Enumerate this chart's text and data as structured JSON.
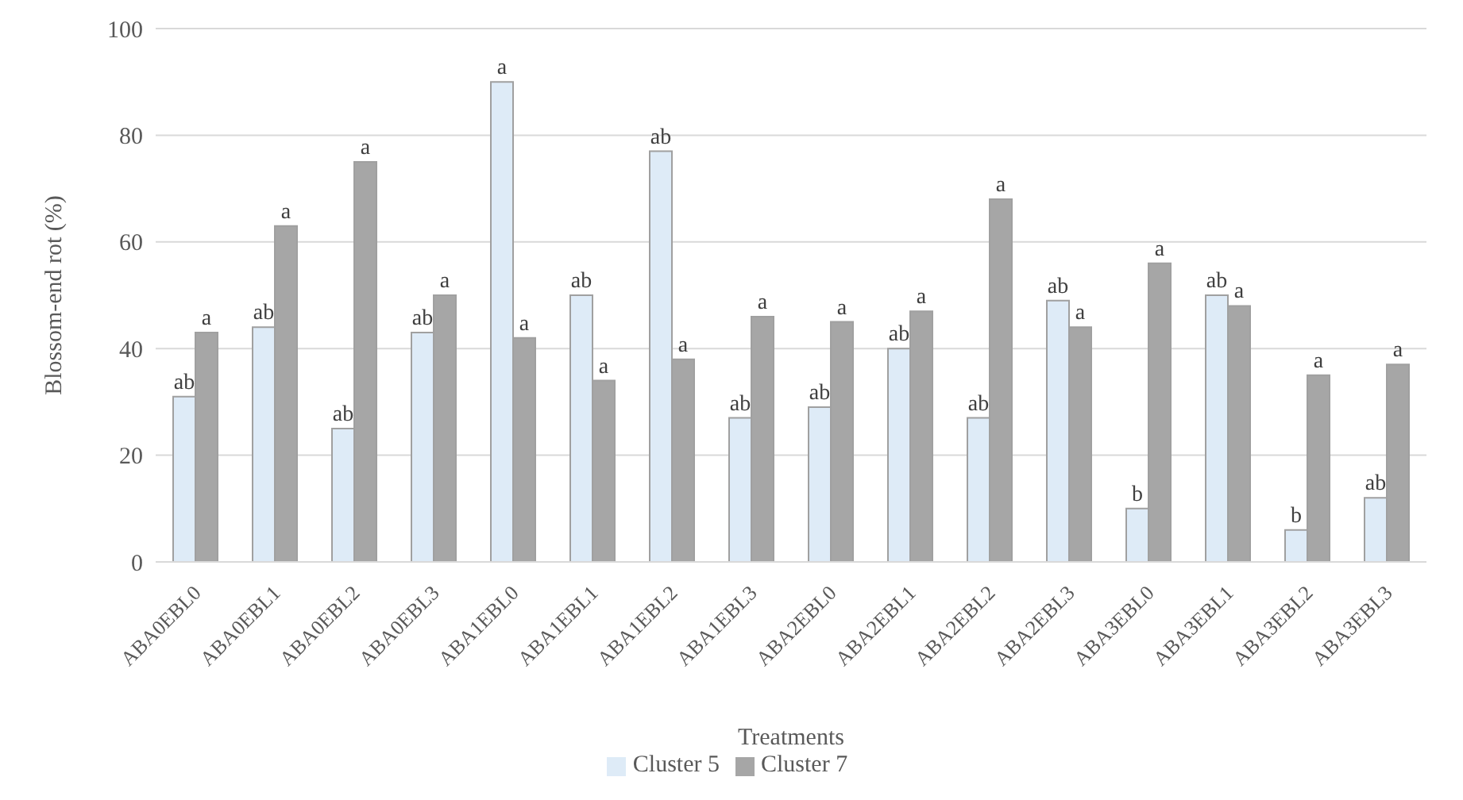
{
  "chart_data": {
    "type": "bar",
    "xlabel": "Treatments",
    "ylabel": "Blossom-end rot (%)",
    "categories": [
      "ABA0EBL0",
      "ABA0EBL1",
      "ABA0EBL2",
      "ABA0EBL3",
      "ABA1EBL0",
      "ABA1EBL1",
      "ABA1EBL2",
      "ABA1EBL3",
      "ABA2EBL0",
      "ABA2EBL1",
      "ABA2EBL2",
      "ABA2EBL3",
      "ABA3EBL0",
      "ABA3EBL1",
      "ABA3EBL2",
      "ABA3EBL3"
    ],
    "series": [
      {
        "name": "Cluster 5",
        "color": "#deebf7",
        "values": [
          31,
          44,
          25,
          43,
          90,
          50,
          77,
          27,
          29,
          40,
          27,
          49,
          10,
          50,
          6,
          12
        ],
        "value_labels": [
          "ab",
          "ab",
          "ab",
          "ab",
          "a",
          "ab",
          "ab",
          "ab",
          "ab",
          "ab",
          "ab",
          "ab",
          "b",
          "ab",
          "b",
          "ab"
        ]
      },
      {
        "name": "Cluster 7",
        "color": "#a6a6a6",
        "values": [
          43,
          63,
          75,
          50,
          42,
          34,
          38,
          46,
          45,
          47,
          68,
          44,
          56,
          48,
          35,
          37
        ],
        "value_labels": [
          "a",
          "a",
          "a",
          "a",
          "a",
          "a",
          "a",
          "a",
          "a",
          "a",
          "a",
          "a",
          "a",
          "a",
          "a",
          "a"
        ]
      }
    ],
    "ylim": [
      0,
      100
    ],
    "yticks": [
      0,
      20,
      40,
      60,
      80,
      100
    ],
    "grid": "y",
    "legend": "bottom"
  }
}
